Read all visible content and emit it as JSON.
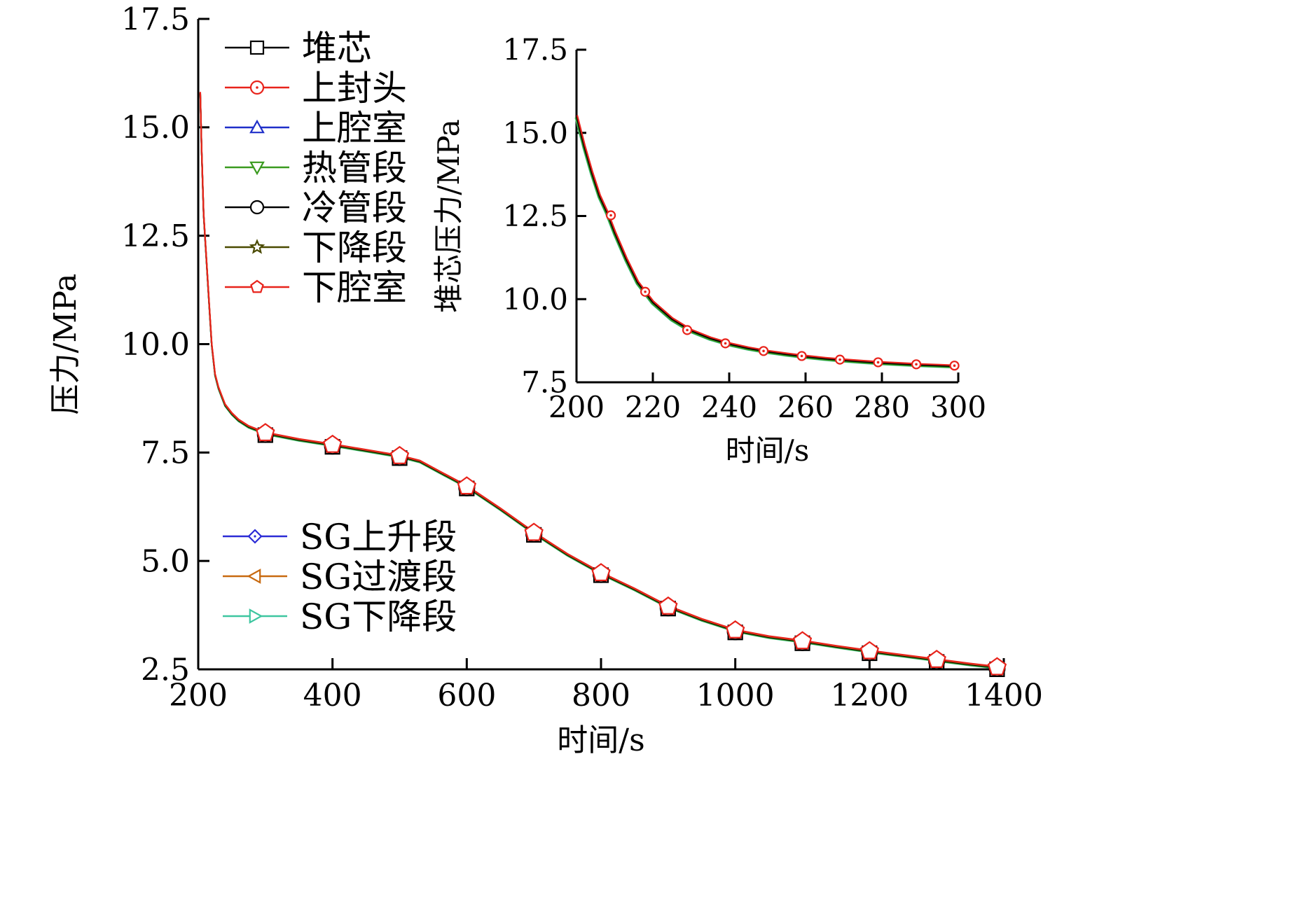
{
  "chart_data": [
    {
      "type": "line",
      "id": "main",
      "xlabel": "时间/s",
      "ylabel": "压力/MPa",
      "xlim": [
        200,
        1400
      ],
      "ylim": [
        2.5,
        17.5
      ],
      "xticks": [
        200,
        400,
        600,
        800,
        1000,
        1200,
        1400
      ],
      "yticks": [
        2.5,
        5.0,
        7.5,
        10.0,
        12.5,
        15.0,
        17.5
      ],
      "xtick_labels": [
        "200",
        "400",
        "600",
        "800",
        "1000",
        "1200",
        "1400"
      ],
      "ytick_labels": [
        "2.5",
        "5.0",
        "7.5",
        "10.0",
        "12.5",
        "15.0",
        "17.5"
      ],
      "curve": {
        "x": [
          203,
          205,
          208,
          212,
          216,
          220,
          225,
          230,
          235,
          240,
          250,
          260,
          275,
          300,
          350,
          400,
          450,
          500,
          530,
          560,
          600,
          650,
          700,
          750,
          800,
          850,
          900,
          950,
          1000,
          1050,
          1100,
          1150,
          1200,
          1250,
          1300,
          1350,
          1390
        ],
        "y": [
          15.8,
          14.5,
          13.0,
          12.0,
          11.0,
          10.0,
          9.3,
          9.0,
          8.8,
          8.6,
          8.4,
          8.25,
          8.1,
          7.95,
          7.8,
          7.68,
          7.55,
          7.42,
          7.3,
          7.05,
          6.72,
          6.2,
          5.65,
          5.15,
          4.72,
          4.35,
          3.95,
          3.65,
          3.4,
          3.25,
          3.15,
          3.03,
          2.92,
          2.82,
          2.72,
          2.62,
          2.55
        ]
      },
      "marker_x": [
        300,
        400,
        500,
        600,
        700,
        800,
        900,
        1000,
        1100,
        1200,
        1300,
        1390
      ],
      "marker_y": [
        7.95,
        7.68,
        7.42,
        6.72,
        5.65,
        4.72,
        3.95,
        3.4,
        3.15,
        2.92,
        2.72,
        2.55
      ],
      "series": [
        {
          "name": "堆芯",
          "color": "#000000",
          "marker": "square"
        },
        {
          "name": "上封头",
          "color": "#e8231b",
          "marker": "circle-dot"
        },
        {
          "name": "上腔室",
          "color": "#1f2fc9",
          "marker": "triangle-up"
        },
        {
          "name": "热管段",
          "color": "#3a9a1f",
          "marker": "triangle-down"
        },
        {
          "name": "冷管段",
          "color": "#000000",
          "marker": "circle"
        },
        {
          "name": "下降段",
          "color": "#4a4a00",
          "marker": "star"
        },
        {
          "name": "下腔室",
          "color": "#e8231b",
          "marker": "pentagon"
        },
        {
          "name": "SG上升段",
          "color": "#2b2bd6",
          "marker": "diamond"
        },
        {
          "name": "SG过渡段",
          "color": "#c86a10",
          "marker": "triangle-left"
        },
        {
          "name": "SG下降段",
          "color": "#3ec6a0",
          "marker": "triangle-right"
        }
      ],
      "legend_placement": [
        "top-left",
        "bottom-left"
      ]
    },
    {
      "type": "line",
      "id": "inset",
      "xlabel": "时间/s",
      "ylabel": "堆芯压力/MPa",
      "xlim": [
        200,
        300
      ],
      "ylim": [
        7.5,
        17.5
      ],
      "xticks": [
        200,
        220,
        240,
        260,
        280,
        300
      ],
      "yticks": [
        7.5,
        10.0,
        12.5,
        15.0,
        17.5
      ],
      "xtick_labels": [
        "200",
        "220",
        "240",
        "260",
        "280",
        "300"
      ],
      "ytick_labels": [
        "7.5",
        "10.0",
        "12.5",
        "15.0",
        "17.5"
      ],
      "curve": {
        "x": [
          200,
          202,
          204,
          206,
          208,
          210,
          213,
          216,
          220,
          225,
          230,
          235,
          240,
          245,
          250,
          255,
          260,
          265,
          270,
          275,
          280,
          285,
          290,
          295,
          299
        ],
        "y": [
          15.5,
          14.6,
          13.8,
          13.1,
          12.6,
          12.0,
          11.2,
          10.5,
          9.9,
          9.4,
          9.05,
          8.82,
          8.65,
          8.52,
          8.42,
          8.34,
          8.27,
          8.21,
          8.16,
          8.12,
          8.08,
          8.05,
          8.02,
          8.0,
          7.98
        ]
      },
      "marker_x": [
        209,
        218,
        229,
        239,
        249,
        259,
        269,
        279,
        289,
        299
      ],
      "marker_y": [
        12.5,
        10.2,
        9.05,
        8.65,
        8.42,
        8.27,
        8.16,
        8.08,
        8.02,
        7.98
      ]
    }
  ]
}
